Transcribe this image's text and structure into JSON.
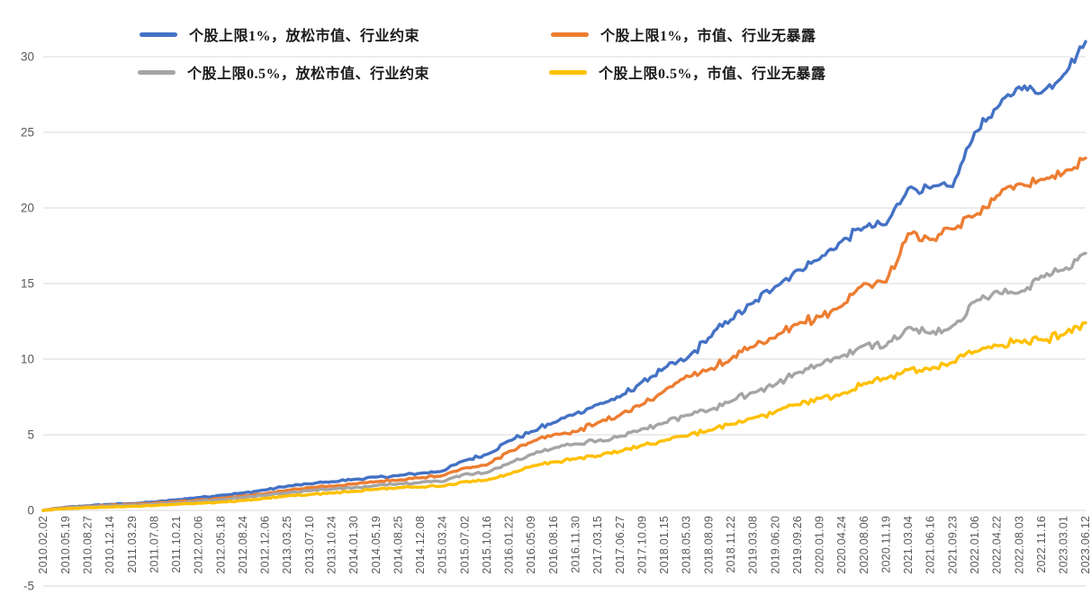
{
  "chart_data": {
    "type": "line",
    "title": "",
    "xlabel": "",
    "ylabel": "",
    "ylim": [
      -5,
      32
    ],
    "y_ticks": [
      -5,
      0,
      5,
      10,
      15,
      20,
      25,
      30
    ],
    "grid": true,
    "legend_position": "top-left, two rows inside plot",
    "background_color": "#FFFFFF",
    "gridline_color": "#D9D9D9",
    "axis_label_color": "#595959",
    "categories": [
      "2010.02.02",
      "2010.05.19",
      "2010.08.27",
      "2010.12.14",
      "2011.03.29",
      "2011.07.08",
      "2011.10.21",
      "2012.02.06",
      "2012.05.18",
      "2012.08.24",
      "2012.12.06",
      "2013.03.25",
      "2013.07.10",
      "2013.10.24",
      "2014.01.30",
      "2014.05.19",
      "2014.08.25",
      "2014.12.08",
      "2015.03.24",
      "2015.07.02",
      "2015.10.16",
      "2016.01.22",
      "2016.05.09",
      "2016.08.16",
      "2016.11.30",
      "2017.03.15",
      "2017.06.27",
      "2017.10.09",
      "2018.01.15",
      "2018.05.03",
      "2018.08.09",
      "2018.11.22",
      "2019.03.08",
      "2019.06.20",
      "2019.09.26",
      "2020.01.09",
      "2020.04.24",
      "2020.08.06",
      "2020.11.19",
      "2021.03.04",
      "2021.06.16",
      "2021.09.23",
      "2022.01.06",
      "2022.04.22",
      "2022.08.03",
      "2022.11.16",
      "2023.03.01",
      "2023.06.12"
    ],
    "series": [
      {
        "name": "个股上限1%，放松市值、行业约束",
        "color": "#4472C4",
        "values": [
          0.0,
          0.2,
          0.3,
          0.4,
          0.45,
          0.55,
          0.7,
          0.85,
          1.0,
          1.15,
          1.35,
          1.6,
          1.75,
          1.9,
          2.05,
          2.2,
          2.3,
          2.45,
          2.6,
          3.3,
          3.7,
          4.6,
          5.2,
          5.8,
          6.4,
          7.0,
          7.5,
          8.5,
          9.4,
          10.0,
          11.4,
          12.6,
          13.7,
          14.8,
          15.9,
          16.6,
          17.8,
          18.7,
          18.9,
          21.3,
          21.3,
          21.4,
          25.0,
          26.6,
          28.0,
          27.6,
          28.8,
          31.0
        ]
      },
      {
        "name": "个股上限1%，市值、行业无暴露",
        "color": "#ED7D31",
        "values": [
          0.0,
          0.18,
          0.27,
          0.34,
          0.4,
          0.48,
          0.58,
          0.68,
          0.8,
          0.95,
          1.1,
          1.33,
          1.5,
          1.6,
          1.75,
          1.9,
          2.0,
          2.15,
          2.3,
          2.8,
          3.0,
          3.9,
          4.5,
          5.0,
          5.2,
          5.8,
          6.3,
          7.0,
          7.9,
          8.9,
          9.3,
          10.0,
          10.8,
          11.4,
          12.3,
          12.8,
          13.5,
          15.0,
          15.1,
          18.3,
          17.9,
          18.6,
          19.5,
          20.8,
          21.6,
          21.9,
          22.3,
          23.3
        ]
      },
      {
        "name": "个股上限0.5%，放松市值、行业约束",
        "color": "#A5A5A5",
        "values": [
          0.0,
          0.15,
          0.24,
          0.3,
          0.35,
          0.42,
          0.5,
          0.6,
          0.7,
          0.85,
          1.0,
          1.15,
          1.3,
          1.4,
          1.5,
          1.65,
          1.75,
          1.85,
          1.9,
          2.4,
          2.5,
          3.1,
          3.7,
          4.1,
          4.4,
          4.6,
          4.9,
          5.4,
          5.8,
          6.3,
          6.6,
          7.2,
          7.8,
          8.3,
          9.1,
          9.6,
          10.2,
          10.9,
          10.9,
          12.1,
          11.7,
          12.2,
          13.8,
          14.5,
          14.4,
          15.5,
          15.9,
          17.0
        ]
      },
      {
        "name": "个股上限0.5%，市值、行业无暴露",
        "color": "#FFC000",
        "values": [
          0.0,
          0.12,
          0.18,
          0.22,
          0.27,
          0.32,
          0.4,
          0.47,
          0.55,
          0.65,
          0.8,
          0.95,
          1.05,
          1.15,
          1.25,
          1.4,
          1.5,
          1.55,
          1.6,
          1.9,
          2.0,
          2.4,
          2.9,
          3.2,
          3.4,
          3.6,
          3.9,
          4.3,
          4.6,
          4.9,
          5.3,
          5.7,
          6.1,
          6.5,
          7.0,
          7.4,
          7.7,
          8.4,
          8.7,
          9.3,
          9.3,
          9.8,
          10.5,
          10.9,
          11.2,
          11.3,
          11.6,
          12.4
        ]
      }
    ]
  }
}
